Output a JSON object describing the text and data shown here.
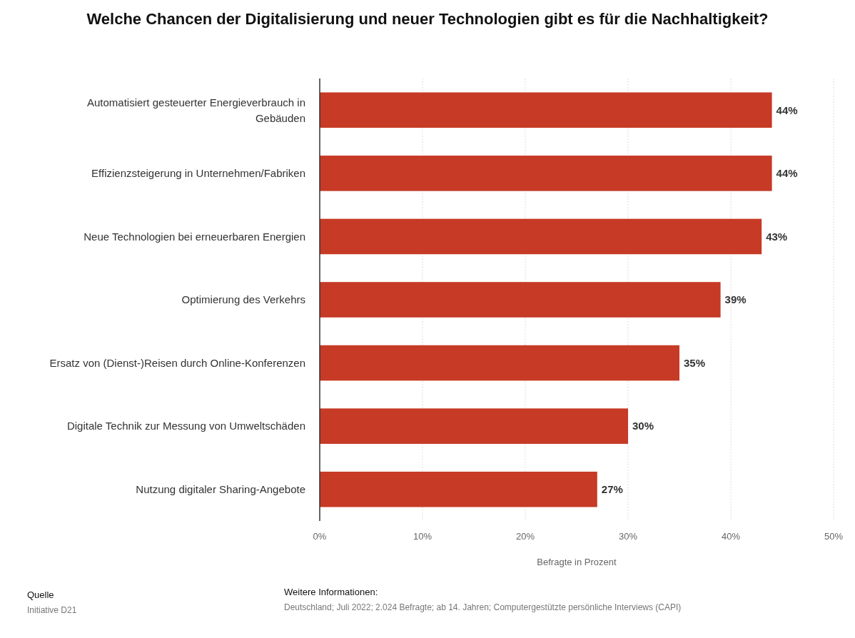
{
  "chart_data": {
    "type": "bar",
    "orientation": "horizontal",
    "title": "Welche Chancen der Digitalisierung und neuer Technologien gibt es für die Nachhaltigkeit?",
    "xlabel": "Befragte in Prozent",
    "categories": [
      "Automatisiert gesteuerter Energieverbrauch in Gebäuden",
      "Effizienzsteigerung in Unternehmen/Fabriken",
      "Neue Technologien bei erneuerbaren Energien",
      "Optimierung des Verkehrs",
      "Ersatz von (Dienst-)Reisen durch Online-Konferenzen",
      "Digitale Technik zur Messung von Umweltschäden",
      "Nutzung digitaler Sharing-Angebote"
    ],
    "values": [
      44,
      44,
      43,
      39,
      35,
      30,
      27
    ],
    "value_labels": [
      "44%",
      "44%",
      "43%",
      "39%",
      "35%",
      "30%",
      "27%"
    ],
    "color": "#c63a26",
    "xlim": [
      0,
      50
    ],
    "xticks": [
      {
        "value": 0,
        "label": "0%"
      },
      {
        "value": 10,
        "label": "10%"
      },
      {
        "value": 20,
        "label": "20%"
      },
      {
        "value": 30,
        "label": "30%"
      },
      {
        "value": 40,
        "label": "40%"
      },
      {
        "value": 50,
        "label": "50%"
      }
    ],
    "grid": "x",
    "annotations": [
      "Quelle",
      "Initiative D21",
      "Weitere Informationen:",
      "Deutschland; Juli 2022; 2.024 Befragte; ab 14. Jahren; Computergestützte persönliche Interviews (CAPI)"
    ]
  }
}
